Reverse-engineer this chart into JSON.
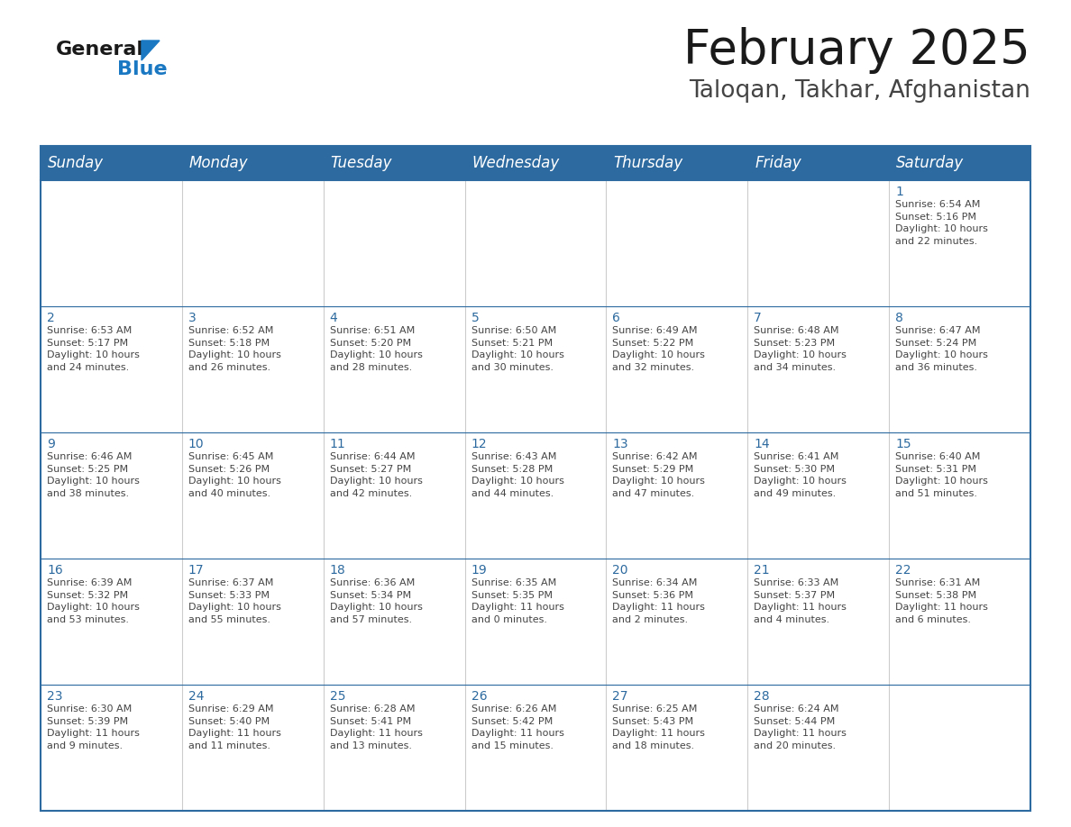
{
  "title": "February 2025",
  "subtitle": "Taloqan, Takhar, Afghanistan",
  "header_bg_color": "#2D6A9F",
  "header_text_color": "#FFFFFF",
  "days_of_week": [
    "Sunday",
    "Monday",
    "Tuesday",
    "Wednesday",
    "Thursday",
    "Friday",
    "Saturday"
  ],
  "cell_bg_color": "#FFFFFF",
  "border_color": "#2D6A9F",
  "cell_border_color": "#AAAAAA",
  "text_color": "#444444",
  "day_num_color": "#2D6A9F",
  "calendar_data": [
    [
      {
        "day": "",
        "info": ""
      },
      {
        "day": "",
        "info": ""
      },
      {
        "day": "",
        "info": ""
      },
      {
        "day": "",
        "info": ""
      },
      {
        "day": "",
        "info": ""
      },
      {
        "day": "",
        "info": ""
      },
      {
        "day": "1",
        "info": "Sunrise: 6:54 AM\nSunset: 5:16 PM\nDaylight: 10 hours\nand 22 minutes."
      }
    ],
    [
      {
        "day": "2",
        "info": "Sunrise: 6:53 AM\nSunset: 5:17 PM\nDaylight: 10 hours\nand 24 minutes."
      },
      {
        "day": "3",
        "info": "Sunrise: 6:52 AM\nSunset: 5:18 PM\nDaylight: 10 hours\nand 26 minutes."
      },
      {
        "day": "4",
        "info": "Sunrise: 6:51 AM\nSunset: 5:20 PM\nDaylight: 10 hours\nand 28 minutes."
      },
      {
        "day": "5",
        "info": "Sunrise: 6:50 AM\nSunset: 5:21 PM\nDaylight: 10 hours\nand 30 minutes."
      },
      {
        "day": "6",
        "info": "Sunrise: 6:49 AM\nSunset: 5:22 PM\nDaylight: 10 hours\nand 32 minutes."
      },
      {
        "day": "7",
        "info": "Sunrise: 6:48 AM\nSunset: 5:23 PM\nDaylight: 10 hours\nand 34 minutes."
      },
      {
        "day": "8",
        "info": "Sunrise: 6:47 AM\nSunset: 5:24 PM\nDaylight: 10 hours\nand 36 minutes."
      }
    ],
    [
      {
        "day": "9",
        "info": "Sunrise: 6:46 AM\nSunset: 5:25 PM\nDaylight: 10 hours\nand 38 minutes."
      },
      {
        "day": "10",
        "info": "Sunrise: 6:45 AM\nSunset: 5:26 PM\nDaylight: 10 hours\nand 40 minutes."
      },
      {
        "day": "11",
        "info": "Sunrise: 6:44 AM\nSunset: 5:27 PM\nDaylight: 10 hours\nand 42 minutes."
      },
      {
        "day": "12",
        "info": "Sunrise: 6:43 AM\nSunset: 5:28 PM\nDaylight: 10 hours\nand 44 minutes."
      },
      {
        "day": "13",
        "info": "Sunrise: 6:42 AM\nSunset: 5:29 PM\nDaylight: 10 hours\nand 47 minutes."
      },
      {
        "day": "14",
        "info": "Sunrise: 6:41 AM\nSunset: 5:30 PM\nDaylight: 10 hours\nand 49 minutes."
      },
      {
        "day": "15",
        "info": "Sunrise: 6:40 AM\nSunset: 5:31 PM\nDaylight: 10 hours\nand 51 minutes."
      }
    ],
    [
      {
        "day": "16",
        "info": "Sunrise: 6:39 AM\nSunset: 5:32 PM\nDaylight: 10 hours\nand 53 minutes."
      },
      {
        "day": "17",
        "info": "Sunrise: 6:37 AM\nSunset: 5:33 PM\nDaylight: 10 hours\nand 55 minutes."
      },
      {
        "day": "18",
        "info": "Sunrise: 6:36 AM\nSunset: 5:34 PM\nDaylight: 10 hours\nand 57 minutes."
      },
      {
        "day": "19",
        "info": "Sunrise: 6:35 AM\nSunset: 5:35 PM\nDaylight: 11 hours\nand 0 minutes."
      },
      {
        "day": "20",
        "info": "Sunrise: 6:34 AM\nSunset: 5:36 PM\nDaylight: 11 hours\nand 2 minutes."
      },
      {
        "day": "21",
        "info": "Sunrise: 6:33 AM\nSunset: 5:37 PM\nDaylight: 11 hours\nand 4 minutes."
      },
      {
        "day": "22",
        "info": "Sunrise: 6:31 AM\nSunset: 5:38 PM\nDaylight: 11 hours\nand 6 minutes."
      }
    ],
    [
      {
        "day": "23",
        "info": "Sunrise: 6:30 AM\nSunset: 5:39 PM\nDaylight: 11 hours\nand 9 minutes."
      },
      {
        "day": "24",
        "info": "Sunrise: 6:29 AM\nSunset: 5:40 PM\nDaylight: 11 hours\nand 11 minutes."
      },
      {
        "day": "25",
        "info": "Sunrise: 6:28 AM\nSunset: 5:41 PM\nDaylight: 11 hours\nand 13 minutes."
      },
      {
        "day": "26",
        "info": "Sunrise: 6:26 AM\nSunset: 5:42 PM\nDaylight: 11 hours\nand 15 minutes."
      },
      {
        "day": "27",
        "info": "Sunrise: 6:25 AM\nSunset: 5:43 PM\nDaylight: 11 hours\nand 18 minutes."
      },
      {
        "day": "28",
        "info": "Sunrise: 6:24 AM\nSunset: 5:44 PM\nDaylight: 11 hours\nand 20 minutes."
      },
      {
        "day": "",
        "info": ""
      }
    ]
  ],
  "logo_text_general": "General",
  "logo_text_blue": "Blue",
  "logo_color_general": "#1a1a1a",
  "logo_color_blue": "#1a78c2",
  "logo_triangle_color": "#1a78c2",
  "title_fontsize": 38,
  "subtitle_fontsize": 19,
  "header_fontsize": 12,
  "day_num_fontsize": 10,
  "info_fontsize": 8
}
